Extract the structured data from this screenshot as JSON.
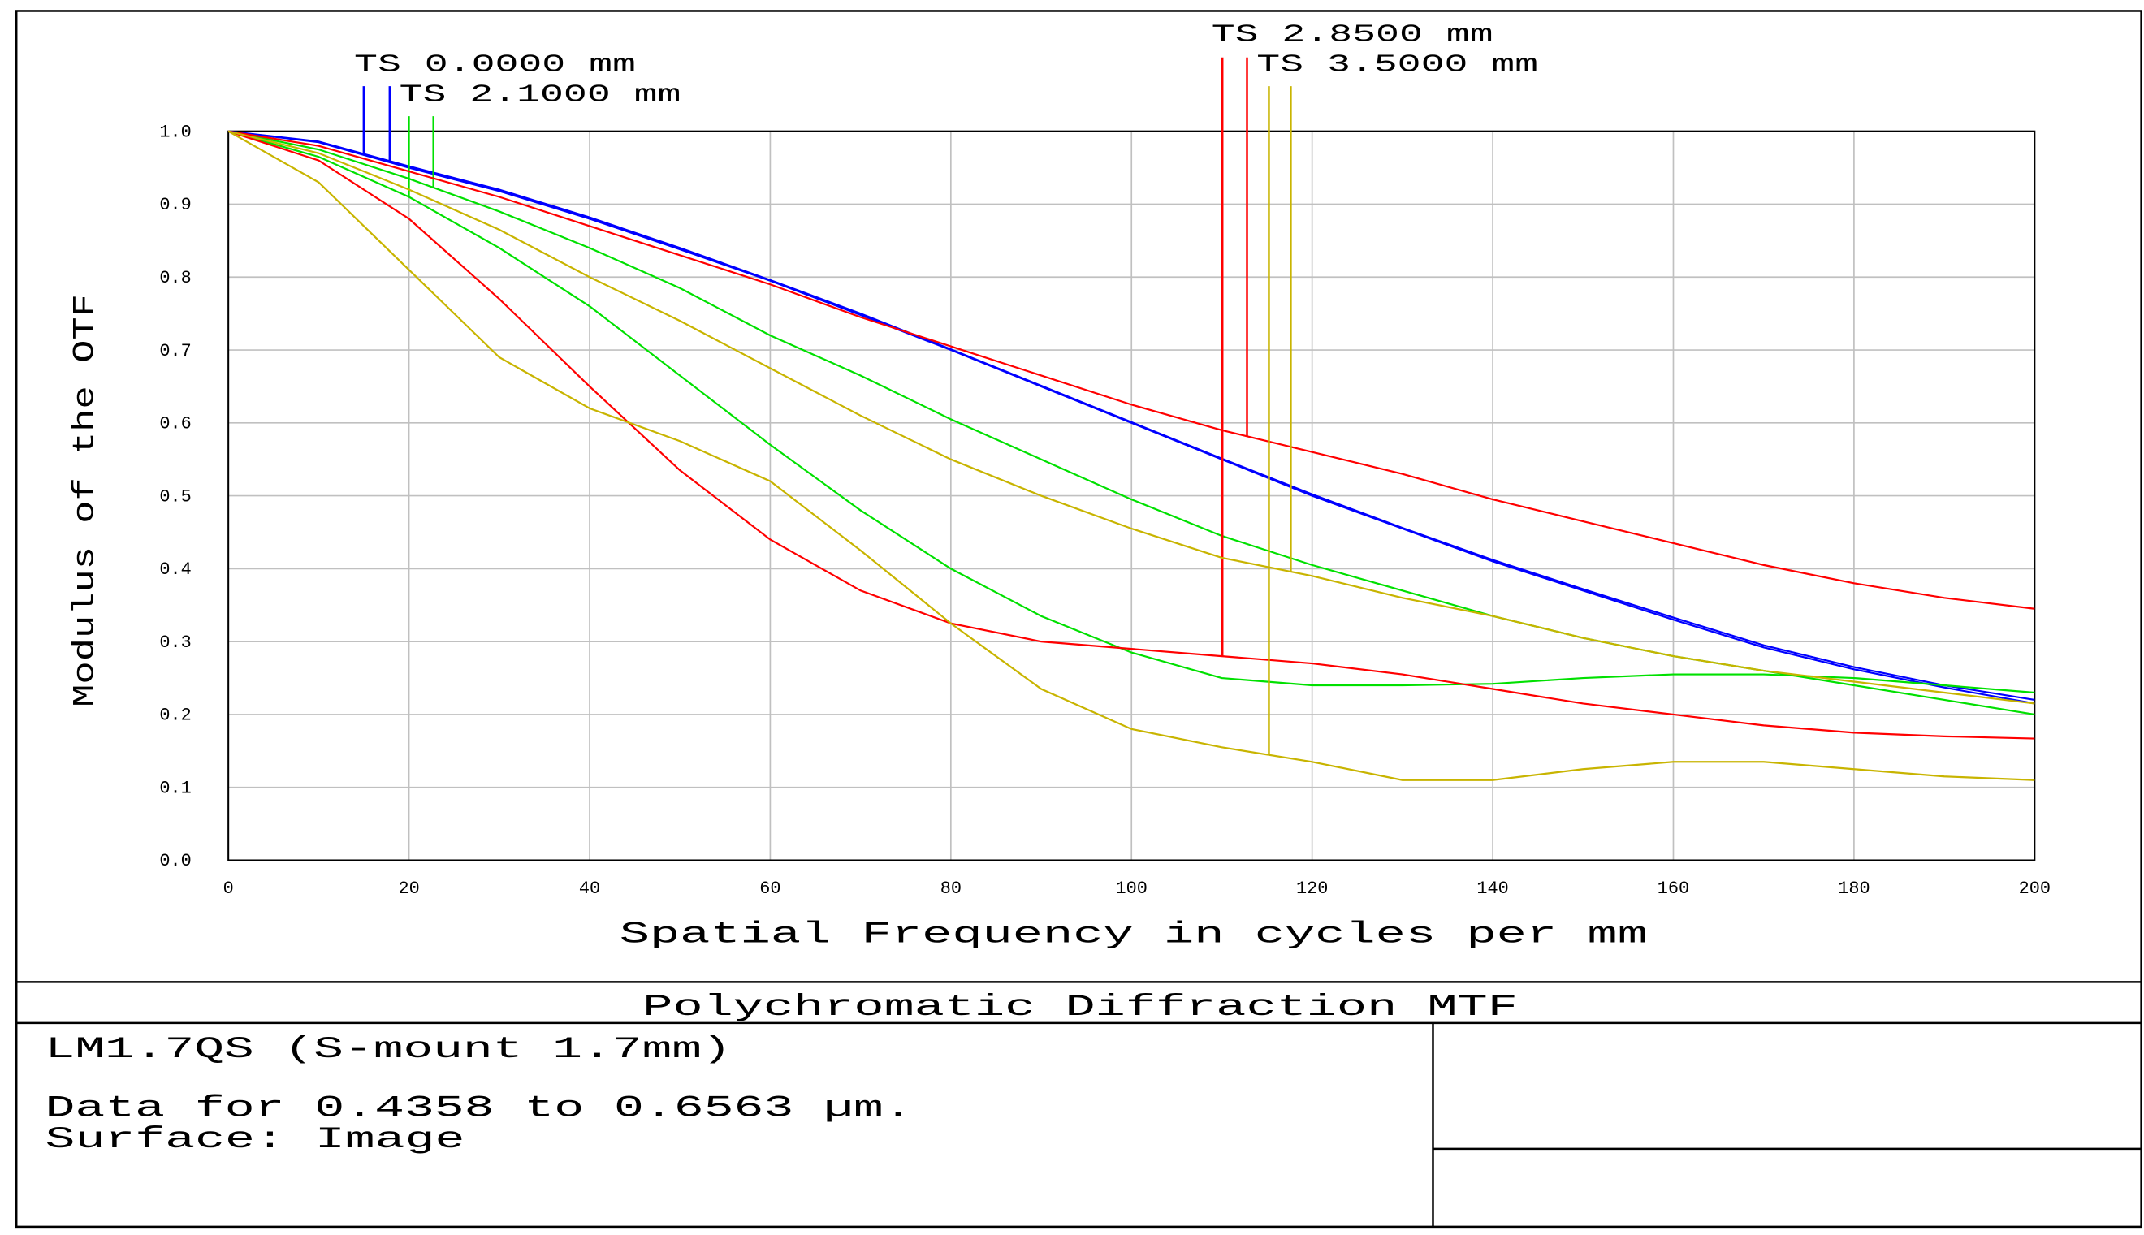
{
  "chart_data": {
    "type": "line",
    "xlabel": "Spatial Frequency in cycles per mm",
    "ylabel": "Modulus of the OTF",
    "x": [
      0,
      10,
      20,
      30,
      40,
      50,
      60,
      70,
      80,
      90,
      100,
      110,
      120,
      130,
      140,
      150,
      160,
      170,
      180,
      190,
      200
    ],
    "xlim": [
      0,
      200
    ],
    "ylim": [
      0,
      1
    ],
    "xticks": [
      0,
      20,
      40,
      60,
      80,
      100,
      120,
      140,
      160,
      180,
      200
    ],
    "yticks": [
      {
        "value": 0,
        "label": "0.0"
      },
      0.1,
      0.2,
      0.3,
      0.4,
      0.5,
      0.6,
      0.7,
      0.8,
      0.9,
      {
        "value": 1,
        "label": "1.0"
      }
    ],
    "grid": true,
    "series": [
      {
        "name": "TS 0.0000 mm",
        "color": "#0000ff",
        "values": [
          1,
          0.985,
          0.95,
          0.918,
          0.88,
          0.838,
          0.795,
          0.748,
          0.7,
          0.65,
          0.6,
          0.55,
          0.5,
          0.455,
          0.41,
          0.37,
          0.33,
          0.292,
          0.262,
          0.237,
          0.215
        ],
        "sagittal_values": [
          1,
          0.986,
          0.952,
          0.92,
          0.882,
          0.84,
          0.796,
          0.75,
          0.701,
          0.651,
          0.601,
          0.551,
          0.502,
          0.456,
          0.412,
          0.372,
          0.333,
          0.295,
          0.265,
          0.24,
          0.22
        ]
      },
      {
        "name": "TS 2.1000 mm",
        "color": "#00e000",
        "values": [
          1,
          0.965,
          0.91,
          0.84,
          0.76,
          0.665,
          0.57,
          0.48,
          0.4,
          0.335,
          0.285,
          0.25,
          0.24,
          0.24,
          0.242,
          0.25,
          0.255,
          0.255,
          0.25,
          0.24,
          0.23
        ],
        "sagittal_values": [
          1,
          0.975,
          0.935,
          0.89,
          0.84,
          0.785,
          0.72,
          0.665,
          0.605,
          0.55,
          0.495,
          0.445,
          0.405,
          0.37,
          0.335,
          0.305,
          0.28,
          0.26,
          0.24,
          0.22,
          0.2
        ]
      },
      {
        "name": "TS 2.8500 mm",
        "color": "#ff0000",
        "values": [
          1,
          0.96,
          0.88,
          0.77,
          0.65,
          0.535,
          0.44,
          0.37,
          0.325,
          0.3,
          0.29,
          0.28,
          0.27,
          0.255,
          0.235,
          0.215,
          0.2,
          0.185,
          0.175,
          0.17,
          0.167
        ],
        "sagittal_values": [
          1,
          0.98,
          0.945,
          0.91,
          0.87,
          0.83,
          0.79,
          0.745,
          0.705,
          0.665,
          0.625,
          0.59,
          0.56,
          0.53,
          0.495,
          0.465,
          0.435,
          0.405,
          0.38,
          0.36,
          0.345
        ]
      },
      {
        "name": "TS 3.5000 mm",
        "color": "#c8b400",
        "values": [
          1,
          0.93,
          0.81,
          0.69,
          0.62,
          0.575,
          0.52,
          0.425,
          0.325,
          0.235,
          0.18,
          0.155,
          0.135,
          0.11,
          0.11,
          0.125,
          0.135,
          0.135,
          0.125,
          0.115,
          0.11
        ],
        "sagittal_values": [
          1,
          0.97,
          0.92,
          0.865,
          0.8,
          0.74,
          0.675,
          0.61,
          0.55,
          0.5,
          0.455,
          0.415,
          0.39,
          0.36,
          0.335,
          0.305,
          0.28,
          0.26,
          0.245,
          0.23,
          0.215
        ]
      }
    ]
  },
  "footer": {
    "title": "Polychromatic Diffraction MTF",
    "lens": "LM1.7QS (S-mount 1.7mm)",
    "data_range": "Data for 0.4358 to 0.6563 µm.",
    "surface": "Surface: Image"
  }
}
